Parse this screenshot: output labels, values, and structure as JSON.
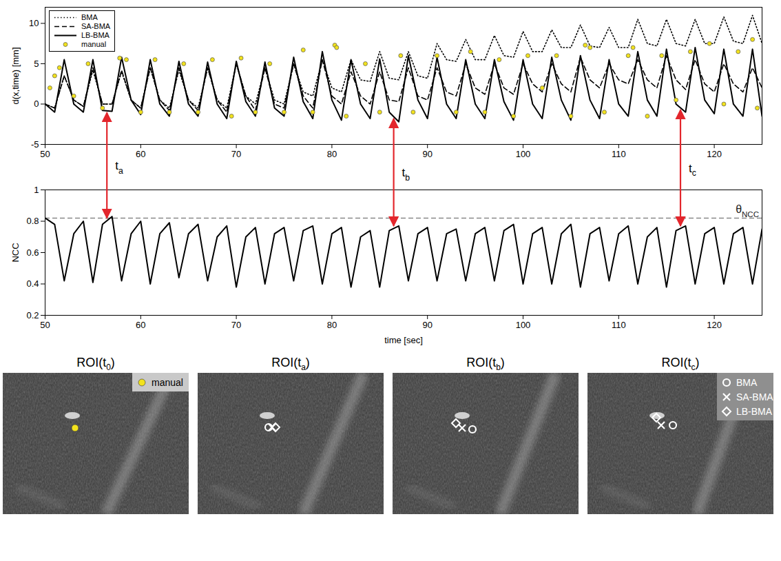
{
  "chart_data": [
    {
      "type": "line",
      "y_label": "d(x,time) [mm]",
      "x": [
        50,
        51,
        52,
        53,
        54,
        55,
        56,
        57,
        58,
        59,
        60,
        61,
        62,
        63,
        64,
        65,
        66,
        67,
        68,
        69,
        70,
        71,
        72,
        73,
        74,
        75,
        76,
        77,
        78,
        79,
        80,
        81,
        82,
        83,
        84,
        85,
        86,
        87,
        88,
        89,
        90,
        91,
        92,
        93,
        94,
        95,
        96,
        97,
        98,
        99,
        100,
        101,
        102,
        103,
        104,
        105,
        106,
        107,
        108,
        109,
        110,
        111,
        112,
        113,
        114,
        115,
        116,
        117,
        118,
        119,
        120,
        121,
        122,
        123,
        124,
        125
      ],
      "series": [
        {
          "name": "BMA",
          "color": "#000000",
          "line_style": "dotted",
          "marker": "circle",
          "values": [
            0,
            -0.5,
            3.5,
            0.5,
            -0.3,
            4.2,
            0,
            0,
            4,
            0.5,
            -0.5,
            4.5,
            0.5,
            -0.5,
            4.2,
            0.5,
            -0.5,
            4.5,
            0.5,
            -0.5,
            5,
            1,
            0,
            4.5,
            0.5,
            0,
            5,
            1.5,
            1,
            5.5,
            2,
            1.5,
            5.5,
            3,
            2.8,
            6.5,
            3.2,
            3,
            6.5,
            3.5,
            3.2,
            7.5,
            5.5,
            5.3,
            8,
            5.5,
            5.5,
            8.5,
            6,
            5.8,
            9,
            6.5,
            6.5,
            9.2,
            7,
            7,
            9.8,
            7.2,
            7,
            9.5,
            7,
            7,
            10.5,
            7.5,
            7.2,
            10.5,
            7.5,
            7.2,
            10.5,
            7.5,
            7.5,
            10.8,
            7.8,
            7.5,
            11,
            7.5
          ]
        },
        {
          "name": "SA-BMA",
          "color": "#000000",
          "line_style": "dashed",
          "marker": "cross",
          "values": [
            0,
            -0.5,
            3.5,
            0.5,
            -0.3,
            4.5,
            0,
            0,
            4.2,
            0.5,
            -0.5,
            4.5,
            0.5,
            -0.8,
            4.5,
            0.5,
            -0.8,
            4.5,
            0.5,
            -1,
            5,
            1,
            -0.8,
            4.5,
            0,
            -0.5,
            5,
            1,
            -0.5,
            5.5,
            1,
            0,
            4,
            1,
            0,
            4,
            0.5,
            0.3,
            4.5,
            1,
            0.5,
            4.5,
            1.5,
            1,
            5,
            2,
            1.2,
            5,
            2,
            1.2,
            5,
            2.5,
            1.5,
            5,
            2.5,
            1.5,
            5.8,
            3,
            2,
            5,
            3,
            2.5,
            5.5,
            3,
            2,
            6,
            3,
            1.8,
            5.5,
            2.5,
            1.5,
            5,
            2.5,
            1.5,
            4.5,
            2
          ]
        },
        {
          "name": "LB-BMA",
          "color": "#000000",
          "line_style": "solid",
          "marker": "diamond",
          "values": [
            0,
            -1,
            5.5,
            0,
            -1,
            5.5,
            -0.8,
            -0.9,
            5.8,
            0.5,
            -1.3,
            5.5,
            0,
            -1.5,
            5.3,
            0,
            -1.5,
            5.2,
            0,
            -1.8,
            5.3,
            0.3,
            -1.5,
            5.2,
            -0.5,
            -1.5,
            5.8,
            0.3,
            -1.8,
            6.5,
            0.5,
            -2,
            5.5,
            0,
            -1.8,
            5.6,
            -1,
            -2.2,
            6,
            0.5,
            -1.8,
            5.8,
            0,
            -1.8,
            5.5,
            0,
            -1.8,
            5.5,
            0.3,
            -2,
            5.5,
            0,
            -1.8,
            5.8,
            0.5,
            -2,
            6,
            0.5,
            -1.8,
            5.5,
            0,
            -1.5,
            6.5,
            0.5,
            -1.5,
            6.8,
            0,
            -1,
            7,
            0.5,
            -1.2,
            6.8,
            0,
            -1.5,
            6.8,
            -1.5
          ]
        },
        {
          "name": "manual",
          "color": "#f2e21d",
          "type": "scatter",
          "marker": "dot",
          "x": [
            50.5,
            51,
            51.5,
            53,
            54.5,
            56,
            57.8,
            58.5,
            60,
            61.5,
            63,
            64.5,
            66,
            67.5,
            69.5,
            70.5,
            72,
            73.5,
            75,
            77,
            78,
            80.3,
            80.5,
            81.5,
            83.5,
            85,
            87.2,
            88.5,
            91,
            93,
            94.5,
            96,
            97.5,
            99,
            100.5,
            102,
            103.5,
            105,
            106.5,
            107,
            108.5,
            111,
            111.5,
            113,
            114.5,
            116,
            117.5,
            119.5,
            121,
            122.5,
            124,
            124.5
          ],
          "values": [
            2,
            3.5,
            4.5,
            1,
            5,
            -0.5,
            5.7,
            5.5,
            -1,
            5.5,
            -1,
            5,
            -1,
            5.5,
            -1.5,
            5.7,
            -1,
            5,
            -1,
            6.7,
            -1,
            7.3,
            7,
            -1.5,
            5,
            -1,
            6,
            -1,
            6,
            -1,
            6.5,
            -1,
            5.5,
            -1.5,
            6,
            2,
            6,
            -1.5,
            7.3,
            7,
            -1,
            6,
            7,
            -1.5,
            6,
            0.5,
            6.5,
            7.5,
            0,
            6.5,
            8,
            -0.5
          ]
        }
      ],
      "xlim": [
        50,
        125
      ],
      "xticks": [
        50,
        60,
        70,
        80,
        90,
        100,
        110,
        120
      ],
      "ylim": [
        -5,
        12
      ],
      "yticks": [
        -5,
        0,
        5,
        10
      ],
      "legend": "top-left",
      "annotations": [
        {
          "main": "t",
          "sub": "a",
          "x": 56.5
        },
        {
          "main": "t",
          "sub": "b",
          "x": 86.5
        },
        {
          "main": "t",
          "sub": "c",
          "x": 116.5
        }
      ]
    },
    {
      "type": "line",
      "y_label": "NCC",
      "x_label": "time [sec]",
      "x": [
        50,
        51,
        52,
        53,
        54,
        55,
        56,
        57,
        58,
        59,
        60,
        61,
        62,
        63,
        64,
        65,
        66,
        67,
        68,
        69,
        70,
        71,
        72,
        73,
        74,
        75,
        76,
        77,
        78,
        79,
        80,
        81,
        82,
        83,
        84,
        85,
        86,
        87,
        88,
        89,
        90,
        91,
        92,
        93,
        94,
        95,
        96,
        97,
        98,
        99,
        100,
        101,
        102,
        103,
        104,
        105,
        106,
        107,
        108,
        109,
        110,
        111,
        112,
        113,
        114,
        115,
        116,
        117,
        118,
        119,
        120,
        121,
        122,
        123,
        124,
        125
      ],
      "values": [
        0.82,
        0.78,
        0.42,
        0.72,
        0.8,
        0.41,
        0.78,
        0.83,
        0.42,
        0.72,
        0.8,
        0.4,
        0.72,
        0.79,
        0.44,
        0.72,
        0.78,
        0.42,
        0.7,
        0.77,
        0.38,
        0.7,
        0.76,
        0.4,
        0.72,
        0.76,
        0.42,
        0.74,
        0.77,
        0.4,
        0.72,
        0.76,
        0.38,
        0.7,
        0.74,
        0.38,
        0.74,
        0.77,
        0.42,
        0.72,
        0.76,
        0.42,
        0.72,
        0.75,
        0.42,
        0.72,
        0.76,
        0.42,
        0.74,
        0.78,
        0.4,
        0.72,
        0.76,
        0.4,
        0.72,
        0.78,
        0.38,
        0.72,
        0.76,
        0.42,
        0.72,
        0.77,
        0.4,
        0.7,
        0.76,
        0.38,
        0.74,
        0.77,
        0.4,
        0.72,
        0.76,
        0.4,
        0.72,
        0.76,
        0.4,
        0.75
      ],
      "color": "#000000",
      "xlim": [
        50,
        125
      ],
      "xticks": [
        50,
        60,
        70,
        80,
        90,
        100,
        110,
        120
      ],
      "ylim": [
        0.2,
        1
      ],
      "yticks": [
        0.2,
        0.4,
        0.6,
        0.8,
        1
      ],
      "threshold": {
        "main": "θ",
        "sub": "NCC",
        "value": 0.82,
        "color": "#888888",
        "line_style": "dashed"
      }
    }
  ],
  "roi_panels": [
    {
      "title": {
        "main": "ROI(t",
        "sub": "0",
        "tail": ")"
      },
      "markers": [
        "manual"
      ],
      "legend": "top-right"
    },
    {
      "title": {
        "main": "ROI(t",
        "sub": "a",
        "tail": ")"
      },
      "markers": [
        "BMA",
        "SA-BMA",
        "LB-BMA"
      ]
    },
    {
      "title": {
        "main": "ROI(t",
        "sub": "b",
        "tail": ")"
      },
      "markers": [
        "BMA",
        "SA-BMA",
        "LB-BMA"
      ]
    },
    {
      "title": {
        "main": "ROI(t",
        "sub": "c",
        "tail": ")"
      },
      "markers": [
        "BMA",
        "SA-BMA",
        "LB-BMA"
      ],
      "legend": "top-right"
    }
  ]
}
